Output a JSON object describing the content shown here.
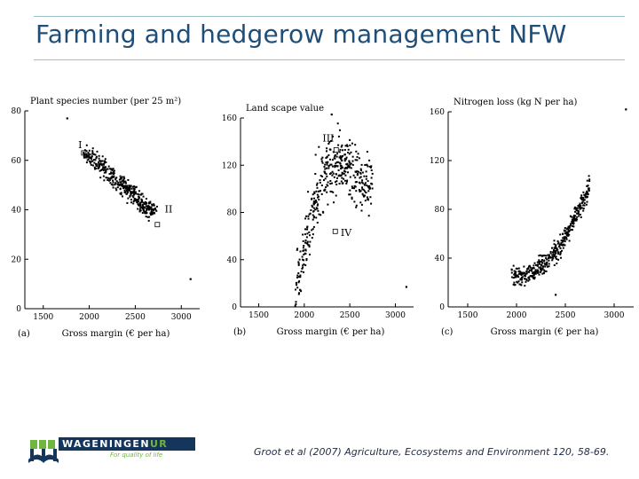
{
  "slide": {
    "title": "Farming and hedgerow management NFW",
    "citation": "Groot et al (2007) Agriculture, Ecosystems and Environment 120, 58-69."
  },
  "logo": {
    "word": "WAGENINGEN",
    "suffix": "UR",
    "tagline": "For quality of life"
  },
  "colors": {
    "title": "#1f4e79",
    "rule": "#9cc3cc",
    "logo_blue": "#14355c",
    "logo_green": "#6fb63e",
    "points": "#000000"
  },
  "chart_data": [
    {
      "type": "scatter",
      "panel_label": "(a)",
      "ylabel": "Plant species number (per 25 m²)",
      "xlabel": "Gross margin (€ per ha)",
      "xlim": [
        1300,
        3200
      ],
      "ylim": [
        0,
        80
      ],
      "xticks": [
        1500,
        2000,
        2500,
        3000
      ],
      "yticks": [
        0,
        20,
        40,
        60,
        80
      ],
      "cloud": {
        "x_start": 1950,
        "y_start": 63,
        "x_end": 2730,
        "y_end": 38,
        "spread_y": 2.5,
        "count": 380
      },
      "outliers": [
        {
          "x": 1760,
          "y": 77
        },
        {
          "x": 3100,
          "y": 12
        }
      ],
      "annotations": [
        {
          "text": "I",
          "x": 1880,
          "y": 65,
          "marker": {
            "x": 1940,
            "y": 63
          }
        },
        {
          "text": "II",
          "x": 2820,
          "y": 39,
          "marker": {
            "x": 2740,
            "y": 34
          }
        }
      ]
    },
    {
      "type": "scatter",
      "panel_label": "(b)",
      "ylabel": "Land scape value",
      "xlabel": "Gross margin (€ per ha)",
      "xlim": [
        1300,
        3200
      ],
      "ylim": [
        0,
        160
      ],
      "xticks": [
        1500,
        2000,
        2500,
        3000
      ],
      "yticks": [
        0,
        40,
        80,
        120,
        160
      ],
      "cloud": {
        "shape": "arch",
        "x_min": 1900,
        "x_max": 2750,
        "peak_x": 2320,
        "peak_y": 120,
        "spread_y": 18,
        "count": 420
      },
      "outliers": [
        {
          "x": 2300,
          "y": 163
        },
        {
          "x": 3120,
          "y": 17
        }
      ],
      "annotations": [
        {
          "text": "III",
          "x": 2200,
          "y": 140,
          "marker": {
            "x": 2350,
            "y": 133
          }
        },
        {
          "text": "IV",
          "x": 2400,
          "y": 60,
          "marker": {
            "x": 2340,
            "y": 64
          }
        }
      ]
    },
    {
      "type": "scatter",
      "panel_label": "(c)",
      "ylabel": "Nitrogen loss (kg N per ha)",
      "xlabel": "Gross margin (€ per ha)",
      "xlim": [
        1300,
        3200
      ],
      "ylim": [
        0,
        160
      ],
      "xticks": [
        1500,
        2000,
        2500,
        3000
      ],
      "yticks": [
        0,
        40,
        80,
        120,
        160
      ],
      "cloud": {
        "shape": "curve",
        "x_min": 1950,
        "x_max": 2750,
        "y_low": 25,
        "y_high": 100,
        "spread_y": 6,
        "count": 420
      },
      "outliers": [
        {
          "x": 3120,
          "y": 162
        },
        {
          "x": 2400,
          "y": 10
        }
      ],
      "annotations": []
    }
  ]
}
